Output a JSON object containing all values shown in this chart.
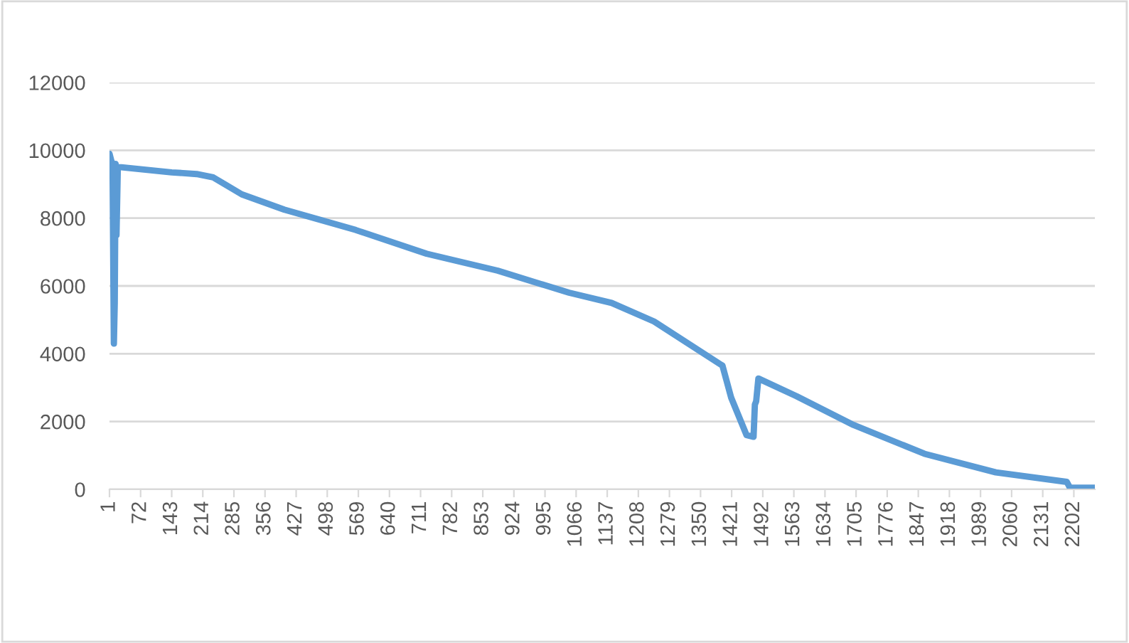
{
  "chart_data": {
    "type": "line",
    "grid": "y",
    "marker": "none",
    "line_style": "solid",
    "xlim": [
      1,
      2250
    ],
    "xticks": [
      1,
      72,
      143,
      214,
      285,
      356,
      427,
      498,
      569,
      640,
      711,
      782,
      853,
      924,
      995,
      1066,
      1137,
      1208,
      1279,
      1350,
      1421,
      1492,
      1563,
      1634,
      1705,
      1776,
      1847,
      1918,
      1989,
      2060,
      2131,
      2202
    ],
    "ylim": [
      0,
      12000
    ],
    "yticks": [
      0,
      2000,
      4000,
      6000,
      8000,
      10000,
      12000
    ],
    "series": [
      {
        "color": "#5b9bd5",
        "x": [
          1,
          5,
          8,
          10,
          11,
          13,
          15,
          17,
          20,
          28,
          143,
          200,
          238,
          303,
          400,
          563,
          725,
          887,
          1050,
          1147,
          1244,
          1400,
          1420,
          1455,
          1471,
          1474,
          1477,
          1482,
          1569,
          1699,
          1861,
          2024,
          2186,
          2193,
          2250
        ],
        "values": [
          9900,
          9700,
          9600,
          6000,
          4300,
          5500,
          9600,
          7500,
          9500,
          9500,
          9350,
          9300,
          9200,
          8700,
          8250,
          7650,
          6950,
          6450,
          5800,
          5500,
          4950,
          3650,
          2700,
          1600,
          1550,
          2500,
          2600,
          3270,
          2750,
          1900,
          1050,
          500,
          220,
          50,
          50
        ]
      }
    ]
  }
}
